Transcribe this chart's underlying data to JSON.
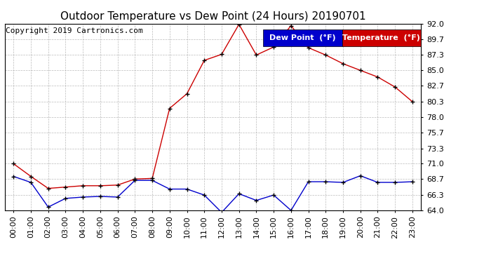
{
  "title": "Outdoor Temperature vs Dew Point (24 Hours) 20190701",
  "copyright": "Copyright 2019 Cartronics.com",
  "background_color": "#ffffff",
  "grid_color": "#aaaaaa",
  "hours": [
    "00:00",
    "01:00",
    "02:00",
    "03:00",
    "04:00",
    "05:00",
    "06:00",
    "07:00",
    "08:00",
    "09:00",
    "10:00",
    "11:00",
    "12:00",
    "13:00",
    "14:00",
    "15:00",
    "16:00",
    "17:00",
    "18:00",
    "19:00",
    "20:00",
    "21:00",
    "22:00",
    "23:00"
  ],
  "temperature": [
    71.0,
    69.1,
    67.3,
    67.5,
    67.7,
    67.7,
    67.8,
    68.7,
    68.8,
    79.3,
    81.5,
    86.5,
    87.4,
    91.9,
    87.3,
    88.5,
    91.7,
    88.4,
    87.3,
    86.0,
    85.0,
    84.0,
    82.5,
    80.3
  ],
  "dew_point": [
    69.1,
    68.2,
    64.5,
    65.8,
    66.0,
    66.1,
    66.0,
    68.5,
    68.5,
    67.2,
    67.2,
    66.3,
    63.7,
    66.5,
    65.5,
    66.3,
    64.0,
    68.3,
    68.3,
    68.2,
    69.2,
    68.2,
    68.2,
    68.3
  ],
  "temp_color": "#cc0000",
  "dew_color": "#0000cc",
  "marker_color": "#000000",
  "ylim_min": 64.0,
  "ylim_max": 92.0,
  "yticks": [
    64.0,
    66.3,
    68.7,
    71.0,
    73.3,
    75.7,
    78.0,
    80.3,
    82.7,
    85.0,
    87.3,
    89.7,
    92.0
  ],
  "legend_dew_bg": "#0000cc",
  "legend_temp_bg": "#cc0000",
  "legend_dew_label": "Dew Point  (°F)",
  "legend_temp_label": "Temperature  (°F)",
  "title_fontsize": 11,
  "tick_fontsize": 8,
  "copyright_fontsize": 8,
  "legend_fontsize": 8
}
